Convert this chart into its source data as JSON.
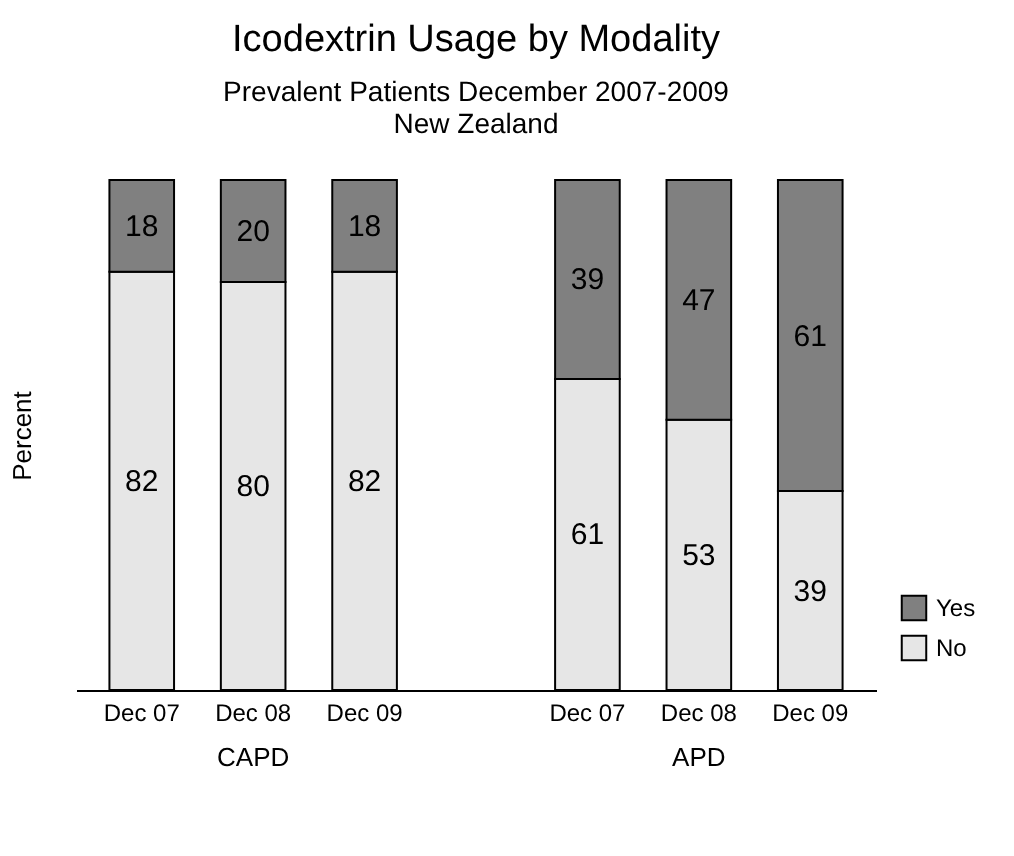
{
  "chart_data": {
    "type": "bar",
    "title": "Icodextrin Usage by Modality",
    "subtitle": "Prevalent Patients December 2007-2009\nNew Zealand",
    "ylabel": "Percent",
    "categories": [
      "Dec 07",
      "Dec 08",
      "Dec 09",
      null,
      "Dec 07",
      "Dec 08",
      "Dec 09"
    ],
    "series": [
      {
        "name": "No",
        "color": "#e6e6e6",
        "values": [
          82,
          80,
          82,
          null,
          61,
          53,
          39
        ]
      },
      {
        "name": "Yes",
        "color": "#808080",
        "values": [
          18,
          20,
          18,
          null,
          39,
          47,
          61
        ]
      }
    ],
    "stacked": true,
    "ylim": [
      0,
      100
    ],
    "data_labels": true,
    "legend": "bottom right",
    "tick_labels": "x",
    "grid": false,
    "annotations": [
      "CAPD",
      "APD"
    ]
  }
}
